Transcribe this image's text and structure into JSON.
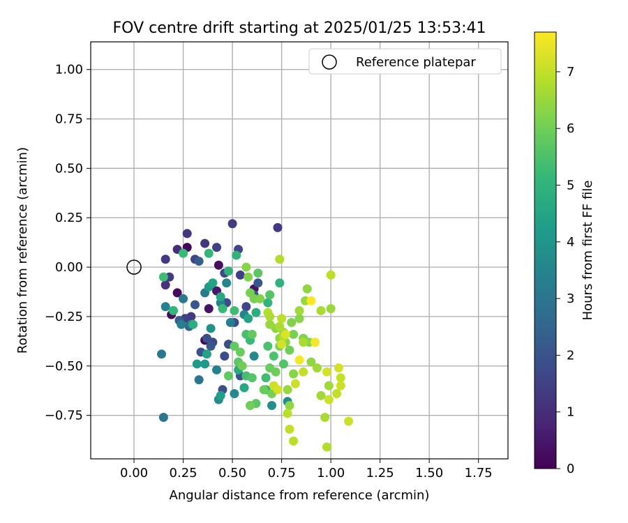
{
  "chart_data": {
    "type": "scatter",
    "title": "FOV centre drift starting at 2025/01/25 13:53:41",
    "xlabel": "Angular distance from reference (arcmin)",
    "ylabel": "Rotation from reference (arcmin)",
    "xlim": [
      -0.22,
      1.9
    ],
    "ylim": [
      -0.97,
      1.14
    ],
    "xticks": [
      0.0,
      0.25,
      0.5,
      0.75,
      1.0,
      1.25,
      1.5,
      1.75
    ],
    "xtick_labels": [
      "0.00",
      "0.25",
      "0.50",
      "0.75",
      "1.00",
      "1.25",
      "1.50",
      "1.75"
    ],
    "yticks": [
      -0.75,
      -0.5,
      -0.25,
      0.0,
      0.25,
      0.5,
      0.75,
      1.0
    ],
    "ytick_labels": [
      "−0.75",
      "−0.50",
      "−0.25",
      "0.00",
      "0.25",
      "0.50",
      "0.75",
      "1.00"
    ],
    "grid": true,
    "legend": {
      "position": "top-right",
      "entries": [
        "Reference platepar"
      ]
    },
    "reference_point": {
      "x": 0.0,
      "y": 0.0,
      "label": "Reference platepar"
    },
    "colorbar": {
      "label": "Hours from first FF file",
      "min": 0,
      "max": 7.7,
      "ticks": [
        0,
        1,
        2,
        3,
        4,
        5,
        6,
        7
      ],
      "tick_labels": [
        "0",
        "1",
        "2",
        "3",
        "4",
        "5",
        "6",
        "7"
      ],
      "colormap": [
        "#440154",
        "#482878",
        "#3e4989",
        "#31688e",
        "#26828e",
        "#1f9e89",
        "#35b779",
        "#6ece58",
        "#b5de2b",
        "#fde725"
      ]
    },
    "points": [
      {
        "x": 0.27,
        "y": 0.1,
        "h": 0.1
      },
      {
        "x": 0.22,
        "y": -0.13,
        "h": 0.2
      },
      {
        "x": 0.19,
        "y": -0.24,
        "h": 0.3
      },
      {
        "x": 0.36,
        "y": -0.37,
        "h": 0.2
      },
      {
        "x": 0.43,
        "y": 0.01,
        "h": 0.3
      },
      {
        "x": 0.61,
        "y": -0.11,
        "h": 0.4
      },
      {
        "x": 0.42,
        "y": -0.12,
        "h": 0.5
      },
      {
        "x": 0.38,
        "y": -0.21,
        "h": 0.4
      },
      {
        "x": 0.27,
        "y": 0.17,
        "h": 1.2
      },
      {
        "x": 0.22,
        "y": 0.09,
        "h": 1.0
      },
      {
        "x": 0.16,
        "y": 0.04,
        "h": 1.3
      },
      {
        "x": 0.16,
        "y": -0.09,
        "h": 1.1
      },
      {
        "x": 0.18,
        "y": -0.05,
        "h": 1.4
      },
      {
        "x": 0.26,
        "y": -0.26,
        "h": 1.5
      },
      {
        "x": 0.29,
        "y": -0.25,
        "h": 1.3
      },
      {
        "x": 0.31,
        "y": 0.04,
        "h": 1.6
      },
      {
        "x": 0.36,
        "y": 0.12,
        "h": 1.2
      },
      {
        "x": 0.42,
        "y": 0.1,
        "h": 1.5
      },
      {
        "x": 0.5,
        "y": 0.22,
        "h": 1.4
      },
      {
        "x": 0.53,
        "y": 0.09,
        "h": 1.6
      },
      {
        "x": 0.73,
        "y": 0.2,
        "h": 1.3
      },
      {
        "x": 0.46,
        "y": -0.03,
        "h": 1.7
      },
      {
        "x": 0.54,
        "y": -0.04,
        "h": 1.5
      },
      {
        "x": 0.57,
        "y": -0.2,
        "h": 1.6
      },
      {
        "x": 0.47,
        "y": -0.18,
        "h": 1.8
      },
      {
        "x": 0.51,
        "y": -0.28,
        "h": 1.8
      },
      {
        "x": 0.37,
        "y": -0.36,
        "h": 1.9
      },
      {
        "x": 0.4,
        "y": -0.38,
        "h": 1.7
      },
      {
        "x": 0.46,
        "y": -0.45,
        "h": 1.8
      },
      {
        "x": 0.45,
        "y": -0.62,
        "h": 1.9
      },
      {
        "x": 0.54,
        "y": -0.55,
        "h": 2.0
      },
      {
        "x": 0.48,
        "y": -0.39,
        "h": 1.9
      },
      {
        "x": 0.39,
        "y": -0.4,
        "h": 2.1
      },
      {
        "x": 0.34,
        "y": -0.43,
        "h": 2.0
      },
      {
        "x": 0.23,
        "y": -0.27,
        "h": 2.2
      },
      {
        "x": 0.31,
        "y": -0.19,
        "h": 2.1
      },
      {
        "x": 0.33,
        "y": 0.03,
        "h": 2.3
      },
      {
        "x": 0.63,
        "y": -0.08,
        "h": 2.1
      },
      {
        "x": 0.61,
        "y": -0.14,
        "h": 2.2
      },
      {
        "x": 0.28,
        "y": -0.3,
        "h": 2.4
      },
      {
        "x": 0.15,
        "y": -0.76,
        "h": 3.0
      },
      {
        "x": 0.14,
        "y": -0.44,
        "h": 3.1
      },
      {
        "x": 0.33,
        "y": -0.57,
        "h": 3.0
      },
      {
        "x": 0.36,
        "y": -0.13,
        "h": 3.2
      },
      {
        "x": 0.25,
        "y": -0.16,
        "h": 3.1
      },
      {
        "x": 0.16,
        "y": -0.2,
        "h": 3.4
      },
      {
        "x": 0.24,
        "y": -0.29,
        "h": 3.3
      },
      {
        "x": 0.29,
        "y": -0.29,
        "h": 3.2
      },
      {
        "x": 0.44,
        "y": -0.18,
        "h": 3.4
      },
      {
        "x": 0.47,
        "y": -0.08,
        "h": 3.5
      },
      {
        "x": 0.49,
        "y": -0.28,
        "h": 3.3
      },
      {
        "x": 0.42,
        "y": -0.52,
        "h": 3.4
      },
      {
        "x": 0.51,
        "y": -0.64,
        "h": 3.6
      },
      {
        "x": 0.43,
        "y": -0.67,
        "h": 3.7
      },
      {
        "x": 0.56,
        "y": -0.24,
        "h": 3.5
      },
      {
        "x": 0.61,
        "y": -0.45,
        "h": 3.6
      },
      {
        "x": 0.7,
        "y": -0.7,
        "h": 3.8
      },
      {
        "x": 0.78,
        "y": -0.68,
        "h": 3.7
      },
      {
        "x": 0.39,
        "y": -0.31,
        "h": 3.9
      },
      {
        "x": 0.2,
        "y": -0.22,
        "h": 4.0
      },
      {
        "x": 0.36,
        "y": -0.49,
        "h": 4.1
      },
      {
        "x": 0.32,
        "y": -0.49,
        "h": 4.2
      },
      {
        "x": 0.44,
        "y": -0.65,
        "h": 4.3
      },
      {
        "x": 0.37,
        "y": -0.44,
        "h": 4.4
      },
      {
        "x": 0.38,
        "y": -0.1,
        "h": 4.2
      },
      {
        "x": 0.4,
        "y": -0.08,
        "h": 4.5
      },
      {
        "x": 0.44,
        "y": -0.15,
        "h": 4.6
      },
      {
        "x": 0.58,
        "y": -0.26,
        "h": 4.5
      },
      {
        "x": 0.53,
        "y": -0.52,
        "h": 4.7
      },
      {
        "x": 0.56,
        "y": -0.61,
        "h": 4.6
      },
      {
        "x": 0.62,
        "y": -0.23,
        "h": 4.8
      },
      {
        "x": 0.67,
        "y": -0.62,
        "h": 4.7
      },
      {
        "x": 0.74,
        "y": -0.08,
        "h": 4.9
      },
      {
        "x": 0.68,
        "y": -0.18,
        "h": 5.0
      },
      {
        "x": 0.3,
        "y": -0.29,
        "h": 4.8
      },
      {
        "x": 0.48,
        "y": -0.02,
        "h": 4.9
      },
      {
        "x": 0.52,
        "y": 0.06,
        "h": 5.0
      },
      {
        "x": 0.38,
        "y": 0.07,
        "h": 5.1
      },
      {
        "x": 0.25,
        "y": 0.07,
        "h": 5.2
      },
      {
        "x": 0.15,
        "y": -0.05,
        "h": 5.3
      },
      {
        "x": 0.2,
        "y": -0.22,
        "h": 5.1
      },
      {
        "x": 0.45,
        "y": -0.21,
        "h": 5.2
      },
      {
        "x": 0.51,
        "y": -0.22,
        "h": 5.3
      },
      {
        "x": 0.57,
        "y": -0.34,
        "h": 5.4
      },
      {
        "x": 0.59,
        "y": -0.37,
        "h": 5.2
      },
      {
        "x": 0.68,
        "y": -0.4,
        "h": 5.5
      },
      {
        "x": 0.67,
        "y": -0.56,
        "h": 5.3
      },
      {
        "x": 0.57,
        "y": -0.55,
        "h": 5.4
      },
      {
        "x": 0.6,
        "y": -0.56,
        "h": 5.6
      },
      {
        "x": 0.71,
        "y": -0.45,
        "h": 5.5
      },
      {
        "x": 0.76,
        "y": -0.49,
        "h": 5.6
      },
      {
        "x": 0.63,
        "y": -0.03,
        "h": 5.7
      },
      {
        "x": 0.69,
        "y": -0.14,
        "h": 5.6
      },
      {
        "x": 0.62,
        "y": -0.69,
        "h": 5.7
      },
      {
        "x": 0.51,
        "y": -0.4,
        "h": 5.8
      },
      {
        "x": 0.53,
        "y": -0.48,
        "h": 5.7
      },
      {
        "x": 0.48,
        "y": -0.55,
        "h": 5.8
      },
      {
        "x": 0.54,
        "y": -0.43,
        "h": 5.9
      },
      {
        "x": 0.6,
        "y": -0.34,
        "h": 5.8
      },
      {
        "x": 0.66,
        "y": -0.62,
        "h": 5.9
      },
      {
        "x": 0.55,
        "y": -0.5,
        "h": 6.0
      },
      {
        "x": 0.69,
        "y": -0.51,
        "h": 5.9
      },
      {
        "x": 0.59,
        "y": -0.7,
        "h": 6.0
      },
      {
        "x": 0.7,
        "y": -0.64,
        "h": 6.1
      },
      {
        "x": 0.72,
        "y": -0.53,
        "h": 6.0
      },
      {
        "x": 0.74,
        "y": -0.4,
        "h": 6.1
      },
      {
        "x": 0.79,
        "y": -0.42,
        "h": 6.0
      },
      {
        "x": 0.61,
        "y": -0.16,
        "h": 6.1
      },
      {
        "x": 0.64,
        "y": -0.16,
        "h": 6.2
      },
      {
        "x": 0.59,
        "y": -0.13,
        "h": 6.1
      },
      {
        "x": 0.58,
        "y": -0.05,
        "h": 6.2
      },
      {
        "x": 0.57,
        "y": 0.0,
        "h": 6.3
      },
      {
        "x": 0.8,
        "y": -0.28,
        "h": 6.2
      },
      {
        "x": 0.77,
        "y": -0.38,
        "h": 6.3
      },
      {
        "x": 0.81,
        "y": -0.34,
        "h": 6.1
      },
      {
        "x": 0.84,
        "y": -0.26,
        "h": 6.3
      },
      {
        "x": 0.86,
        "y": -0.36,
        "h": 6.2
      },
      {
        "x": 0.88,
        "y": -0.11,
        "h": 6.4
      },
      {
        "x": 0.89,
        "y": -0.38,
        "h": 6.3
      },
      {
        "x": 0.9,
        "y": -0.48,
        "h": 6.4
      },
      {
        "x": 0.81,
        "y": -0.54,
        "h": 6.3
      },
      {
        "x": 0.74,
        "y": -0.36,
        "h": 6.4
      },
      {
        "x": 0.76,
        "y": -0.33,
        "h": 6.5
      },
      {
        "x": 0.72,
        "y": -0.31,
        "h": 6.4
      },
      {
        "x": 0.69,
        "y": -0.29,
        "h": 6.5
      },
      {
        "x": 0.79,
        "y": -0.7,
        "h": 6.4
      },
      {
        "x": 0.78,
        "y": -0.62,
        "h": 6.5
      },
      {
        "x": 0.84,
        "y": -0.22,
        "h": 6.6
      },
      {
        "x": 0.87,
        "y": -0.17,
        "h": 6.5
      },
      {
        "x": 0.95,
        "y": -0.65,
        "h": 6.6
      },
      {
        "x": 0.97,
        "y": -0.76,
        "h": 6.7
      },
      {
        "x": 0.99,
        "y": -0.6,
        "h": 6.6
      },
      {
        "x": 1.0,
        "y": -0.21,
        "h": 6.5
      },
      {
        "x": 0.95,
        "y": -0.22,
        "h": 6.7
      },
      {
        "x": 0.93,
        "y": -0.51,
        "h": 6.6
      },
      {
        "x": 0.86,
        "y": -0.38,
        "h": 6.7
      },
      {
        "x": 0.76,
        "y": -0.35,
        "h": 6.8
      },
      {
        "x": 0.74,
        "y": -0.3,
        "h": 6.7
      },
      {
        "x": 0.68,
        "y": -0.23,
        "h": 6.8
      },
      {
        "x": 0.69,
        "y": -0.25,
        "h": 6.7
      },
      {
        "x": 0.75,
        "y": -0.26,
        "h": 6.9
      },
      {
        "x": 0.74,
        "y": 0.04,
        "h": 6.8
      },
      {
        "x": 1.0,
        "y": -0.04,
        "h": 6.9
      },
      {
        "x": 0.98,
        "y": -0.91,
        "h": 6.8
      },
      {
        "x": 0.81,
        "y": -0.88,
        "h": 6.9
      },
      {
        "x": 0.79,
        "y": -0.82,
        "h": 7.0
      },
      {
        "x": 0.78,
        "y": -0.74,
        "h": 6.9
      },
      {
        "x": 0.86,
        "y": -0.53,
        "h": 7.0
      },
      {
        "x": 0.99,
        "y": -0.67,
        "h": 7.1
      },
      {
        "x": 1.03,
        "y": -0.64,
        "h": 7.0
      },
      {
        "x": 1.05,
        "y": -0.6,
        "h": 7.1
      },
      {
        "x": 1.05,
        "y": -0.56,
        "h": 7.0
      },
      {
        "x": 1.04,
        "y": -0.51,
        "h": 7.2
      },
      {
        "x": 1.09,
        "y": -0.78,
        "h": 7.1
      },
      {
        "x": 0.98,
        "y": -0.53,
        "h": 7.2
      },
      {
        "x": 0.82,
        "y": -0.59,
        "h": 7.1
      },
      {
        "x": 0.73,
        "y": -0.62,
        "h": 7.2
      },
      {
        "x": 0.71,
        "y": -0.6,
        "h": 7.1
      },
      {
        "x": 0.75,
        "y": -0.39,
        "h": 7.2
      },
      {
        "x": 0.77,
        "y": -0.34,
        "h": 7.3
      },
      {
        "x": 0.92,
        "y": -0.38,
        "h": 7.6
      },
      {
        "x": 0.9,
        "y": -0.17,
        "h": 7.7
      },
      {
        "x": 0.84,
        "y": -0.47,
        "h": 7.6
      }
    ]
  }
}
